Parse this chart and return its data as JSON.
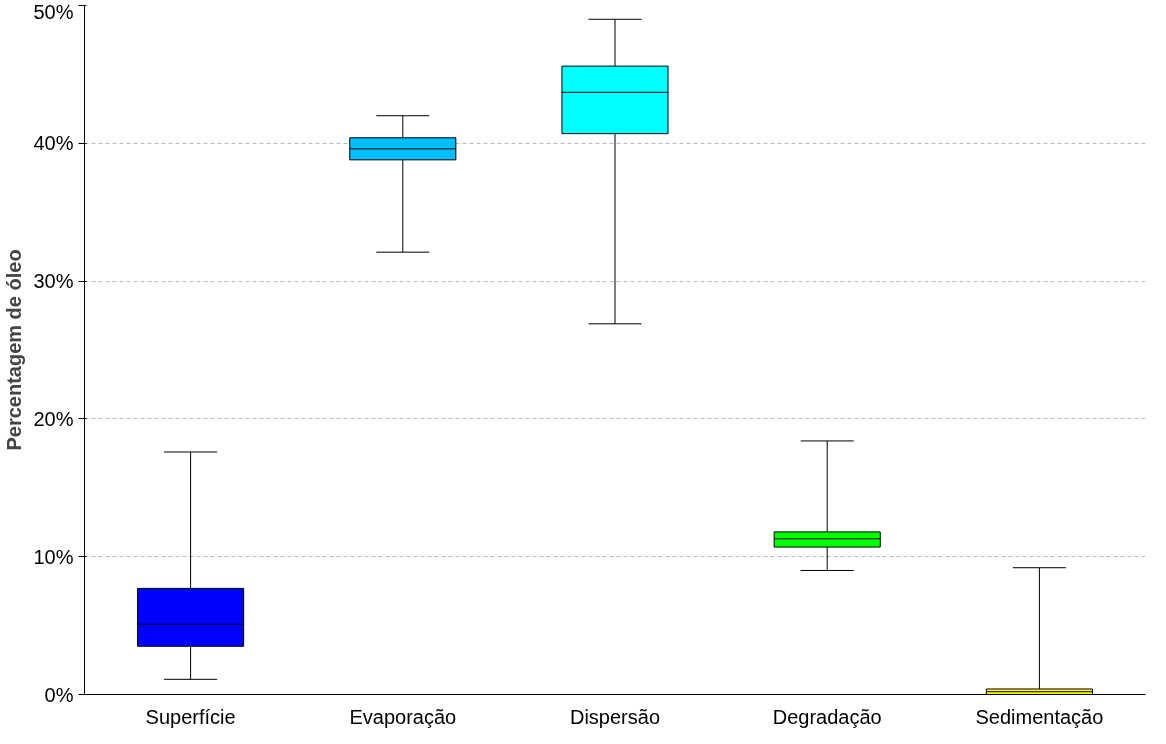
{
  "chart_data": {
    "type": "box",
    "ylabel": "Percentagem de óleo",
    "categories": [
      "Superfície",
      "Evaporação",
      "Dispersão",
      "Degradação",
      "Sedimentação"
    ],
    "colors": [
      "#0000ff",
      "#00bfff",
      "#00ffff",
      "#00ff00",
      "#ffff00"
    ],
    "boxes": [
      {
        "low": 1.1,
        "q1": 3.5,
        "median": 5.1,
        "q3": 7.7,
        "high": 17.6
      },
      {
        "low": 32.1,
        "q1": 38.8,
        "median": 39.6,
        "q3": 40.4,
        "high": 42.0
      },
      {
        "low": 26.9,
        "q1": 40.7,
        "median": 43.7,
        "q3": 45.6,
        "high": 49.0
      },
      {
        "low": 9.0,
        "q1": 10.7,
        "median": 11.3,
        "q3": 11.8,
        "high": 18.4
      },
      {
        "low": 0,
        "q1": 0,
        "median": 0.2,
        "q3": 0.4,
        "high": 9.2
      }
    ],
    "ylim": [
      0,
      50
    ],
    "yticks": [
      {
        "value": 0,
        "label": "0%"
      },
      {
        "value": 10,
        "label": "10%"
      },
      {
        "value": 20,
        "label": "20%"
      },
      {
        "value": 30,
        "label": "30%"
      },
      {
        "value": 40,
        "label": "40%"
      },
      {
        "value": 50,
        "label": "50%"
      }
    ],
    "grid": "y"
  }
}
